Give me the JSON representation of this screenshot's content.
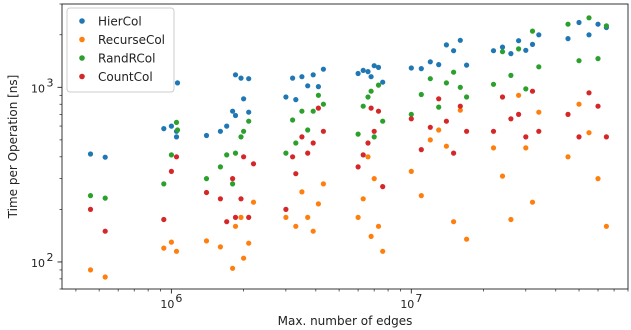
{
  "chart_data": {
    "type": "scatter",
    "xlabel": "Max. number of edges",
    "ylabel": "Time per Operation [ns]",
    "xscale": "log",
    "yscale": "log",
    "xlim": [
      350000,
      80000000
    ],
    "ylim": [
      70,
      3000
    ],
    "x_ticks": [
      {
        "value": 1000000,
        "base": "10",
        "exp": "6"
      },
      {
        "value": 10000000,
        "base": "10",
        "exp": "7"
      }
    ],
    "y_ticks": [
      {
        "value": 100,
        "base": "10",
        "exp": "2"
      },
      {
        "value": 1000,
        "base": "10",
        "exp": "3"
      }
    ],
    "legend_position": "top-left",
    "series": [
      {
        "name": "HierCol",
        "color": "#1f77b4",
        "points": [
          [
            460000,
            415
          ],
          [
            530000,
            398
          ],
          [
            930000,
            580
          ],
          [
            1000000,
            600
          ],
          [
            1050000,
            520
          ],
          [
            1050000,
            560
          ],
          [
            1060000,
            1060
          ],
          [
            1400000,
            530
          ],
          [
            1600000,
            560
          ],
          [
            1700000,
            600
          ],
          [
            1800000,
            730
          ],
          [
            1850000,
            690
          ],
          [
            1850000,
            1180
          ],
          [
            1950000,
            1130
          ],
          [
            2000000,
            860
          ],
          [
            2100000,
            720
          ],
          [
            2100000,
            1120
          ],
          [
            3000000,
            880
          ],
          [
            3200000,
            1130
          ],
          [
            3300000,
            850
          ],
          [
            3500000,
            1150
          ],
          [
            3700000,
            1020
          ],
          [
            3900000,
            1180
          ],
          [
            4100000,
            1010
          ],
          [
            4300000,
            1270
          ],
          [
            6000000,
            1200
          ],
          [
            6300000,
            1250
          ],
          [
            6600000,
            1230
          ],
          [
            6800000,
            1150
          ],
          [
            7000000,
            1330
          ],
          [
            7300000,
            1300
          ],
          [
            7600000,
            1070
          ],
          [
            10000000,
            1290
          ],
          [
            11000000,
            1280
          ],
          [
            12000000,
            1400
          ],
          [
            13000000,
            1350
          ],
          [
            14000000,
            1750
          ],
          [
            15000000,
            1620
          ],
          [
            16000000,
            1860
          ],
          [
            17000000,
            1340
          ],
          [
            22000000,
            1620
          ],
          [
            24000000,
            1700
          ],
          [
            26000000,
            1560
          ],
          [
            28000000,
            1850
          ],
          [
            30000000,
            1630
          ],
          [
            32000000,
            1760
          ],
          [
            34000000,
            2000
          ],
          [
            45000000,
            1900
          ],
          [
            50000000,
            2350
          ],
          [
            55000000,
            2000
          ],
          [
            60000000,
            2300
          ],
          [
            65000000,
            2200
          ]
        ]
      },
      {
        "name": "RecurseCol",
        "color": "#ff7f0e",
        "points": [
          [
            460000,
            90
          ],
          [
            530000,
            82
          ],
          [
            930000,
            120
          ],
          [
            1000000,
            130
          ],
          [
            1050000,
            115
          ],
          [
            1400000,
            132
          ],
          [
            1600000,
            122
          ],
          [
            1800000,
            92
          ],
          [
            1850000,
            160
          ],
          [
            1950000,
            180
          ],
          [
            2000000,
            105
          ],
          [
            2100000,
            128
          ],
          [
            2200000,
            220
          ],
          [
            3000000,
            180
          ],
          [
            3300000,
            160
          ],
          [
            3500000,
            252
          ],
          [
            3700000,
            180
          ],
          [
            3900000,
            150
          ],
          [
            4100000,
            215
          ],
          [
            4300000,
            280
          ],
          [
            6000000,
            180
          ],
          [
            6300000,
            230
          ],
          [
            6600000,
            400
          ],
          [
            6800000,
            140
          ],
          [
            7000000,
            300
          ],
          [
            7300000,
            160
          ],
          [
            7600000,
            115
          ],
          [
            10000000,
            330
          ],
          [
            11000000,
            240
          ],
          [
            12000000,
            500
          ],
          [
            13000000,
            570
          ],
          [
            14000000,
            460
          ],
          [
            15000000,
            170
          ],
          [
            16000000,
            740
          ],
          [
            17000000,
            135
          ],
          [
            22000000,
            450
          ],
          [
            24000000,
            310
          ],
          [
            26000000,
            175
          ],
          [
            28000000,
            900
          ],
          [
            30000000,
            450
          ],
          [
            32000000,
            220
          ],
          [
            34000000,
            720
          ],
          [
            45000000,
            400
          ],
          [
            50000000,
            800
          ],
          [
            55000000,
            550
          ],
          [
            60000000,
            300
          ],
          [
            65000000,
            160
          ]
        ]
      },
      {
        "name": "RandRCol",
        "color": "#2ca02c",
        "points": [
          [
            460000,
            240
          ],
          [
            530000,
            232
          ],
          [
            930000,
            280
          ],
          [
            1000000,
            410
          ],
          [
            1050000,
            630
          ],
          [
            1060000,
            570
          ],
          [
            1400000,
            300
          ],
          [
            1600000,
            350
          ],
          [
            1700000,
            410
          ],
          [
            1800000,
            280
          ],
          [
            1850000,
            420
          ],
          [
            1950000,
            520
          ],
          [
            2000000,
            560
          ],
          [
            2100000,
            640
          ],
          [
            3000000,
            420
          ],
          [
            3200000,
            650
          ],
          [
            3300000,
            480
          ],
          [
            3500000,
            730
          ],
          [
            3700000,
            570
          ],
          [
            3900000,
            730
          ],
          [
            4100000,
            900
          ],
          [
            4300000,
            800
          ],
          [
            6000000,
            540
          ],
          [
            6300000,
            780
          ],
          [
            6600000,
            880
          ],
          [
            6800000,
            950
          ],
          [
            7000000,
            520
          ],
          [
            7300000,
            1030
          ],
          [
            7600000,
            640
          ],
          [
            10000000,
            700
          ],
          [
            11000000,
            910
          ],
          [
            12000000,
            1120
          ],
          [
            13000000,
            770
          ],
          [
            14000000,
            1060
          ],
          [
            15000000,
            1220
          ],
          [
            16000000,
            1000
          ],
          [
            17000000,
            880
          ],
          [
            22000000,
            1040
          ],
          [
            24000000,
            1600
          ],
          [
            26000000,
            1170
          ],
          [
            28000000,
            1660
          ],
          [
            30000000,
            980
          ],
          [
            32000000,
            2100
          ],
          [
            34000000,
            1310
          ],
          [
            45000000,
            2300
          ],
          [
            50000000,
            1420
          ],
          [
            55000000,
            2500
          ],
          [
            60000000,
            1460
          ],
          [
            65000000,
            2250
          ]
        ]
      },
      {
        "name": "CountCol",
        "color": "#d62728",
        "points": [
          [
            460000,
            200
          ],
          [
            530000,
            150
          ],
          [
            930000,
            175
          ],
          [
            1000000,
            330
          ],
          [
            1050000,
            400
          ],
          [
            1400000,
            250
          ],
          [
            1600000,
            230
          ],
          [
            1700000,
            170
          ],
          [
            1800000,
            300
          ],
          [
            1850000,
            180
          ],
          [
            1950000,
            230
          ],
          [
            2000000,
            400
          ],
          [
            2100000,
            180
          ],
          [
            2200000,
            365
          ],
          [
            3000000,
            200
          ],
          [
            3200000,
            400
          ],
          [
            3300000,
            320
          ],
          [
            3500000,
            520
          ],
          [
            3700000,
            420
          ],
          [
            3900000,
            480
          ],
          [
            4100000,
            760
          ],
          [
            4300000,
            560
          ],
          [
            6000000,
            350
          ],
          [
            6300000,
            410
          ],
          [
            6600000,
            480
          ],
          [
            6800000,
            760
          ],
          [
            7000000,
            560
          ],
          [
            7300000,
            730
          ],
          [
            7600000,
            270
          ],
          [
            10000000,
            660
          ],
          [
            11000000,
            440
          ],
          [
            12000000,
            590
          ],
          [
            13000000,
            860
          ],
          [
            14000000,
            640
          ],
          [
            15000000,
            420
          ],
          [
            16000000,
            780
          ],
          [
            17000000,
            560
          ],
          [
            22000000,
            560
          ],
          [
            24000000,
            880
          ],
          [
            26000000,
            660
          ],
          [
            28000000,
            700
          ],
          [
            30000000,
            520
          ],
          [
            32000000,
            950
          ],
          [
            34000000,
            560
          ],
          [
            45000000,
            700
          ],
          [
            50000000,
            520
          ],
          [
            55000000,
            930
          ],
          [
            60000000,
            780
          ],
          [
            65000000,
            520
          ]
        ]
      }
    ]
  }
}
